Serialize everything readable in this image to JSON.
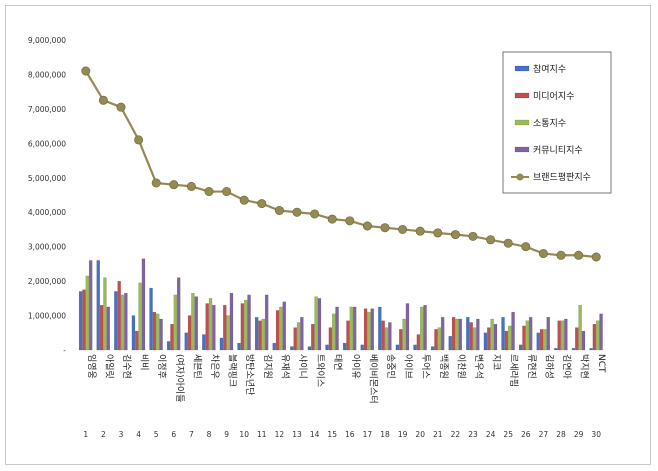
{
  "chart_data": {
    "type": "bar",
    "ylim": [
      0,
      9000000
    ],
    "yticks": [
      "9,000,000",
      "8,000,000",
      "7,000,000",
      "6,000,000",
      "5,000,000",
      "4,000,000",
      "3,000,000",
      "2,000,000",
      "1,000,000",
      "-"
    ],
    "categories": [
      "임영웅",
      "아일릿",
      "김수현",
      "비비",
      "이정후",
      "(여자)아이들",
      "세븐틴",
      "차은우",
      "블랙핑크",
      "방탄소년단",
      "김지원",
      "유재석",
      "샤이니",
      "트와이스",
      "태연",
      "아이유",
      "베이비몬스터",
      "송중민",
      "아이브",
      "투어스",
      "백종원",
      "이찬원",
      "변우석",
      "지코",
      "르세라핌",
      "류현진",
      "김하성",
      "김연아",
      "박지현",
      "NCT"
    ],
    "ranks": [
      "1",
      "2",
      "3",
      "4",
      "5",
      "6",
      "7",
      "8",
      "9",
      "10",
      "11",
      "12",
      "13",
      "14",
      "15",
      "16",
      "17",
      "18",
      "19",
      "20",
      "21",
      "22",
      "23",
      "24",
      "25",
      "26",
      "27",
      "28",
      "29",
      "30"
    ],
    "series": [
      {
        "name": "참여지수",
        "color": "#4472c4",
        "values": [
          1700000,
          2600000,
          1700000,
          1000000,
          1800000,
          250000,
          500000,
          450000,
          350000,
          200000,
          950000,
          200000,
          100000,
          100000,
          150000,
          200000,
          150000,
          1250000,
          150000,
          150000,
          100000,
          400000,
          950000,
          500000,
          950000,
          150000,
          500000,
          50000,
          50000,
          50000
        ]
      },
      {
        "name": "미디어지수",
        "color": "#c0504d",
        "values": [
          1750000,
          1300000,
          2000000,
          550000,
          1100000,
          750000,
          1000000,
          1350000,
          1300000,
          1350000,
          850000,
          1150000,
          650000,
          750000,
          650000,
          850000,
          1200000,
          850000,
          600000,
          450000,
          600000,
          950000,
          800000,
          650000,
          550000,
          700000,
          600000,
          850000,
          650000,
          750000
        ]
      },
      {
        "name": "소통지수",
        "color": "#9bbb59",
        "values": [
          2150000,
          2100000,
          1600000,
          1950000,
          1050000,
          1600000,
          1650000,
          1500000,
          1000000,
          1450000,
          900000,
          1250000,
          800000,
          1550000,
          1050000,
          1250000,
          1100000,
          650000,
          900000,
          1250000,
          650000,
          900000,
          650000,
          900000,
          700000,
          850000,
          600000,
          850000,
          1300000,
          850000
        ]
      },
      {
        "name": "커뮤니티지수",
        "color": "#8064a2",
        "values": [
          2600000,
          1250000,
          1650000,
          2650000,
          900000,
          2100000,
          1550000,
          1300000,
          1650000,
          1600000,
          1600000,
          1400000,
          950000,
          1500000,
          1250000,
          1250000,
          1200000,
          800000,
          1350000,
          1300000,
          950000,
          900000,
          900000,
          750000,
          1100000,
          950000,
          950000,
          900000,
          550000,
          1050000
        ]
      }
    ],
    "line_series": {
      "name": "브랜드평판지수",
      "color": "#948a54",
      "values": [
        8100000,
        7250000,
        7050000,
        6100000,
        4850000,
        4800000,
        4750000,
        4600000,
        4600000,
        4350000,
        4250000,
        4050000,
        4000000,
        3950000,
        3800000,
        3750000,
        3600000,
        3550000,
        3500000,
        3450000,
        3400000,
        3350000,
        3300000,
        3200000,
        3100000,
        3000000,
        2800000,
        2750000,
        2750000,
        2700000
      ]
    },
    "legend_position": "top-right"
  }
}
